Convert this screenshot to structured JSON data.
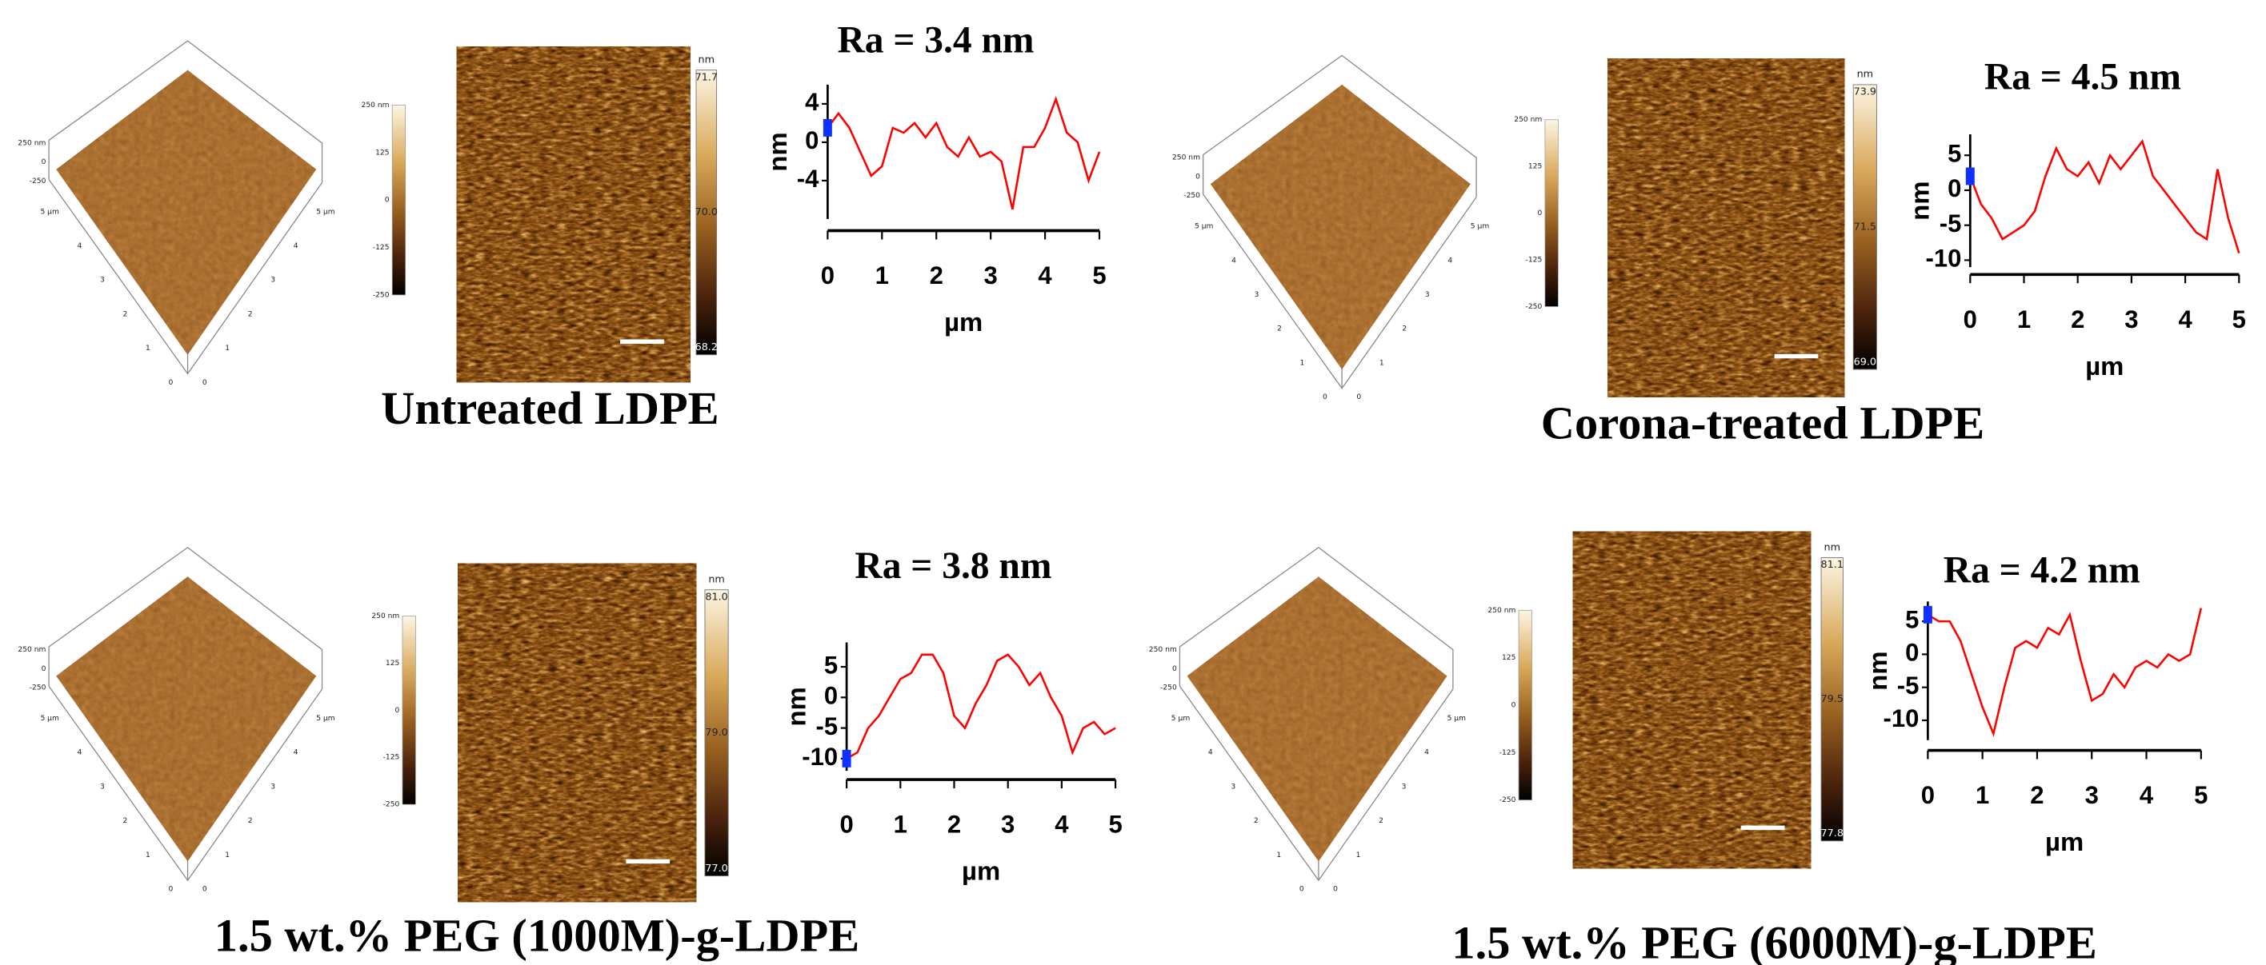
{
  "panels": [
    {
      "label": "Untreated LDPE",
      "ra": "Ra = 3.4 nm",
      "surface_3d": {
        "z_ticks": [
          "250 nm",
          "0",
          "-250"
        ],
        "edge_ticks": [
          "5 µm",
          "4",
          "3",
          "2",
          "1",
          "0"
        ]
      },
      "height_scale": [
        "250 nm",
        "125",
        "0",
        "-125",
        "-250"
      ],
      "image_colorbar": {
        "unit": "nm",
        "ticks": [
          "71.7",
          "70.0",
          "68.2"
        ]
      },
      "profile": {
        "type": "line",
        "xlabel": "µm",
        "ylabel": "nm",
        "color": "#ff0000",
        "xlim": [
          0,
          5
        ],
        "ylim": [
          -8,
          6
        ],
        "xticks": [
          0,
          1,
          2,
          3,
          4,
          5
        ],
        "yticks": [
          4,
          0,
          -4
        ],
        "x": [
          0,
          0.2,
          0.4,
          0.6,
          0.8,
          1.0,
          1.2,
          1.4,
          1.6,
          1.8,
          2.0,
          2.2,
          2.4,
          2.6,
          2.8,
          3.0,
          3.2,
          3.4,
          3.6,
          3.8,
          4.0,
          4.2,
          4.4,
          4.6,
          4.8,
          5.0
        ],
        "values": [
          1.5,
          3,
          1.5,
          -1,
          -3.5,
          -2.5,
          1.5,
          1,
          2,
          0.5,
          2,
          -0.5,
          -1.5,
          0.5,
          -1.5,
          -1,
          -2,
          -7,
          -0.5,
          -0.5,
          1.5,
          4.5,
          1,
          0,
          -4,
          -1
        ]
      }
    },
    {
      "label": "Corona-treated LDPE",
      "ra": "Ra = 4.5 nm",
      "surface_3d": {
        "z_ticks": [
          "250 nm",
          "0",
          "-250"
        ],
        "edge_ticks": [
          "5 µm",
          "4",
          "3",
          "2",
          "1",
          "0"
        ]
      },
      "height_scale": [
        "250 nm",
        "125",
        "0",
        "-125",
        "-250"
      ],
      "image_colorbar": {
        "unit": "nm",
        "ticks": [
          "73.9",
          "71.5",
          "69.0"
        ]
      },
      "profile": {
        "type": "line",
        "xlabel": "µm",
        "ylabel": "nm",
        "color": "#ff0000",
        "xlim": [
          0,
          5
        ],
        "ylim": [
          -11,
          8
        ],
        "xticks": [
          0,
          1,
          2,
          3,
          4,
          5
        ],
        "yticks": [
          5,
          0,
          -5,
          -10
        ],
        "x": [
          0,
          0.2,
          0.4,
          0.6,
          0.8,
          1.0,
          1.2,
          1.4,
          1.6,
          1.8,
          2.0,
          2.2,
          2.4,
          2.6,
          2.8,
          3.0,
          3.2,
          3.4,
          3.6,
          3.8,
          4.0,
          4.2,
          4.4,
          4.6,
          4.8,
          5.0
        ],
        "values": [
          2,
          -2,
          -4,
          -7,
          -6,
          -5,
          -3,
          2,
          6,
          3,
          2,
          4,
          1,
          5,
          3,
          5,
          7,
          2,
          0,
          -2,
          -4,
          -6,
          -7,
          3,
          -4,
          -9
        ]
      }
    },
    {
      "label": "1.5 wt.% PEG (1000M)-g-LDPE",
      "ra": "Ra = 3.8 nm",
      "surface_3d": {
        "z_ticks": [
          "250 nm",
          "0",
          "-250"
        ],
        "edge_ticks": [
          "5 µm",
          "4",
          "3",
          "2",
          "1",
          "0"
        ]
      },
      "height_scale": [
        "250 nm",
        "125",
        "0",
        "-125",
        "-250"
      ],
      "image_colorbar": {
        "unit": "nm",
        "ticks": [
          "81.0",
          "79.0",
          "77.0"
        ]
      },
      "profile": {
        "type": "line",
        "xlabel": "µm",
        "ylabel": "nm",
        "color": "#ff0000",
        "xlim": [
          0,
          5
        ],
        "ylim": [
          -12,
          9
        ],
        "xticks": [
          0,
          1,
          2,
          3,
          4,
          5
        ],
        "yticks": [
          5,
          0,
          -5,
          -10
        ],
        "x": [
          0,
          0.2,
          0.4,
          0.6,
          0.8,
          1.0,
          1.2,
          1.4,
          1.6,
          1.8,
          2.0,
          2.2,
          2.4,
          2.6,
          2.8,
          3.0,
          3.2,
          3.4,
          3.6,
          3.8,
          4.0,
          4.2,
          4.4,
          4.6,
          4.8,
          5.0
        ],
        "values": [
          -10,
          -9,
          -5,
          -3,
          0,
          3,
          4,
          7,
          7,
          4,
          -3,
          -5,
          -1,
          2,
          6,
          7,
          5,
          2,
          4,
          0,
          -3,
          -9,
          -5,
          -4,
          -6,
          -5
        ]
      }
    },
    {
      "label": "1.5 wt.% PEG (6000M)-g-LDPE",
      "ra": "Ra = 4.2 nm",
      "surface_3d": {
        "z_ticks": [
          "250 nm",
          "0",
          "-250"
        ],
        "edge_ticks": [
          "5 µm",
          "4",
          "3",
          "2",
          "1",
          "0"
        ]
      },
      "height_scale": [
        "250 nm",
        "125",
        "0",
        "-125",
        "-250"
      ],
      "image_colorbar": {
        "unit": "nm",
        "ticks": [
          "81.1",
          "79.5",
          "77.8"
        ]
      },
      "profile": {
        "type": "line",
        "xlabel": "µm",
        "ylabel": "nm",
        "color": "#ff0000",
        "xlim": [
          0,
          5
        ],
        "ylim": [
          -13,
          8
        ],
        "xticks": [
          0,
          1,
          2,
          3,
          4,
          5
        ],
        "yticks": [
          5,
          0,
          -5,
          -10
        ],
        "x": [
          0,
          0.2,
          0.4,
          0.6,
          0.8,
          1.0,
          1.2,
          1.4,
          1.6,
          1.8,
          2.0,
          2.2,
          2.4,
          2.6,
          2.8,
          3.0,
          3.2,
          3.4,
          3.6,
          3.8,
          4.0,
          4.2,
          4.4,
          4.6,
          4.8,
          5.0
        ],
        "values": [
          6,
          5,
          5,
          2,
          -3,
          -8,
          -12,
          -5,
          1,
          2,
          1,
          4,
          3,
          6,
          -1,
          -7,
          -6,
          -3,
          -5,
          -2,
          -1,
          -2,
          0,
          -1,
          0,
          7
        ]
      }
    }
  ]
}
